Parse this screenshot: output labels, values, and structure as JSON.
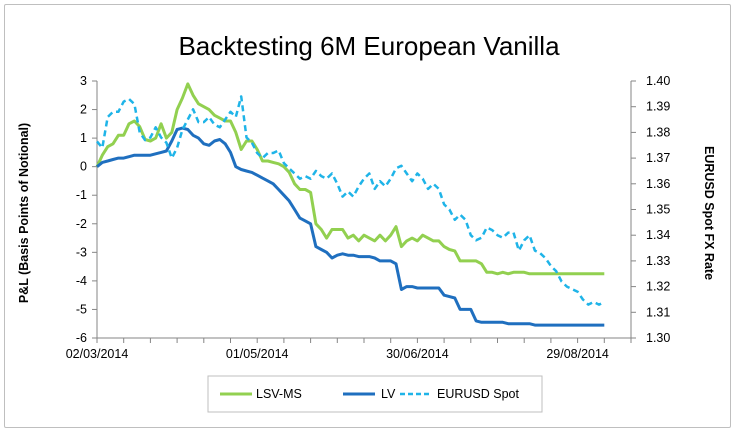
{
  "chart_data": {
    "type": "line",
    "title": "Backtesting 6M European Vanilla",
    "ylabel": "P&L (Basis Points of Notional)",
    "y2label": "EURUSD Spot FX Rate",
    "ylim": [
      -6,
      3
    ],
    "y2lim": [
      1.3,
      1.4
    ],
    "y_ticks": [
      "3",
      "2",
      "1",
      "0",
      "-1",
      "-2",
      "-3",
      "-4",
      "-5",
      "-6"
    ],
    "y2_ticks": [
      "1.40",
      "1.39",
      "1.38",
      "1.37",
      "1.36",
      "1.35",
      "1.34",
      "1.33",
      "1.32",
      "1.31",
      "1.30"
    ],
    "x_ticks": [
      "02/03/2014",
      "01/05/2014",
      "30/06/2014",
      "29/08/2014"
    ],
    "x_tick_days": [
      0,
      60,
      120,
      180
    ],
    "xlim_days": [
      0,
      200
    ],
    "x_unit": "days from 02/03/2014",
    "colors": {
      "lsv": "#92D050",
      "lv": "#1F6FBF",
      "spot": "#1FB4E8",
      "negative_tick": "#FF0000",
      "axis": "#868686"
    },
    "legend": {
      "position": "bottom",
      "entries": [
        "LSV-MS",
        "LV",
        "EURUSD Spot"
      ]
    },
    "series": [
      {
        "name": "LSV-MS",
        "axis": "left",
        "style": "solid",
        "x": [
          0,
          2,
          4,
          6,
          8,
          10,
          12,
          14,
          16,
          18,
          20,
          22,
          24,
          26,
          28,
          30,
          32,
          34,
          36,
          38,
          40,
          42,
          44,
          46,
          48,
          50,
          52,
          54,
          56,
          58,
          60,
          62,
          64,
          66,
          68,
          70,
          72,
          74,
          76,
          78,
          80,
          82,
          84,
          86,
          88,
          90,
          92,
          94,
          96,
          98,
          100,
          102,
          104,
          106,
          108,
          110,
          112,
          114,
          116,
          118,
          120,
          122,
          124,
          126,
          128,
          130,
          132,
          134,
          136,
          138,
          140,
          142,
          144,
          146,
          148,
          150,
          152,
          154,
          156,
          158,
          160,
          162,
          164,
          166,
          168,
          170,
          172,
          174,
          176,
          178,
          180,
          182,
          184,
          186,
          188,
          190
        ],
        "y": [
          0,
          0.4,
          0.7,
          0.8,
          1.1,
          1.1,
          1.5,
          1.6,
          1.4,
          0.95,
          0.9,
          1.0,
          1.5,
          1.0,
          1.2,
          2.0,
          2.4,
          2.9,
          2.5,
          2.2,
          2.1,
          2.0,
          1.8,
          1.7,
          1.6,
          1.6,
          1.2,
          0.6,
          0.9,
          0.9,
          0.6,
          0.2,
          0.2,
          0.15,
          0.1,
          0.0,
          -0.2,
          -0.6,
          -0.8,
          -0.8,
          -0.9,
          -2.0,
          -2.2,
          -2.5,
          -2.2,
          -2.2,
          -2.2,
          -2.5,
          -2.4,
          -2.6,
          -2.4,
          -2.5,
          -2.6,
          -2.4,
          -2.6,
          -2.4,
          -2.1,
          -2.8,
          -2.6,
          -2.5,
          -2.6,
          -2.4,
          -2.5,
          -2.6,
          -2.6,
          -2.8,
          -2.9,
          -2.95,
          -3.3,
          -3.3,
          -3.3,
          -3.3,
          -3.4,
          -3.7,
          -3.7,
          -3.75,
          -3.7,
          -3.75,
          -3.7,
          -3.7,
          -3.7,
          -3.75,
          -3.75,
          -3.75,
          -3.75,
          -3.75,
          -3.75,
          -3.75,
          -3.75,
          -3.75,
          -3.75,
          -3.75,
          -3.75,
          -3.75,
          -3.75,
          -3.75
        ]
      },
      {
        "name": "LV",
        "axis": "left",
        "style": "solid",
        "x": [
          0,
          2,
          4,
          6,
          8,
          10,
          12,
          14,
          16,
          18,
          20,
          22,
          24,
          26,
          28,
          30,
          32,
          34,
          36,
          38,
          40,
          42,
          44,
          46,
          48,
          50,
          52,
          54,
          56,
          58,
          60,
          62,
          64,
          66,
          68,
          70,
          72,
          74,
          76,
          78,
          80,
          82,
          84,
          86,
          88,
          90,
          92,
          94,
          96,
          98,
          100,
          102,
          104,
          106,
          108,
          110,
          112,
          114,
          116,
          118,
          120,
          122,
          124,
          126,
          128,
          130,
          132,
          134,
          136,
          138,
          140,
          142,
          144,
          146,
          148,
          150,
          152,
          154,
          156,
          158,
          160,
          162,
          164,
          166,
          168,
          170,
          172,
          174,
          176,
          178,
          180,
          182,
          184,
          186,
          188,
          190
        ],
        "y": [
          0,
          0.15,
          0.2,
          0.25,
          0.3,
          0.3,
          0.35,
          0.4,
          0.4,
          0.4,
          0.4,
          0.45,
          0.5,
          0.55,
          0.9,
          1.3,
          1.35,
          1.3,
          1.1,
          1.0,
          0.8,
          0.75,
          0.9,
          0.95,
          0.8,
          0.5,
          0.0,
          -0.1,
          -0.15,
          -0.2,
          -0.3,
          -0.4,
          -0.5,
          -0.6,
          -0.8,
          -1.0,
          -1.2,
          -1.5,
          -1.8,
          -1.9,
          -2.0,
          -2.8,
          -2.9,
          -3.0,
          -3.2,
          -3.1,
          -3.05,
          -3.1,
          -3.1,
          -3.15,
          -3.15,
          -3.15,
          -3.2,
          -3.3,
          -3.3,
          -3.3,
          -3.4,
          -4.3,
          -4.2,
          -4.2,
          -4.25,
          -4.25,
          -4.25,
          -4.25,
          -4.25,
          -4.5,
          -4.55,
          -4.6,
          -5.0,
          -5.0,
          -5.0,
          -5.4,
          -5.45,
          -5.45,
          -5.45,
          -5.45,
          -5.45,
          -5.5,
          -5.5,
          -5.5,
          -5.5,
          -5.5,
          -5.55,
          -5.55,
          -5.55,
          -5.55,
          -5.55,
          -5.55,
          -5.55,
          -5.55,
          -5.55,
          -5.55,
          -5.55,
          -5.55,
          -5.55,
          -5.55
        ]
      },
      {
        "name": "EURUSD Spot",
        "axis": "right",
        "style": "dashed",
        "x": [
          0,
          2,
          4,
          6,
          8,
          10,
          12,
          14,
          16,
          18,
          20,
          22,
          24,
          26,
          28,
          30,
          32,
          34,
          36,
          38,
          40,
          42,
          44,
          46,
          48,
          50,
          52,
          54,
          56,
          58,
          60,
          62,
          64,
          66,
          68,
          70,
          72,
          74,
          76,
          78,
          80,
          82,
          84,
          86,
          88,
          90,
          92,
          94,
          96,
          98,
          100,
          102,
          104,
          106,
          108,
          110,
          112,
          114,
          116,
          118,
          120,
          122,
          124,
          126,
          128,
          130,
          132,
          134,
          136,
          138,
          140,
          142,
          144,
          146,
          148,
          150,
          152,
          154,
          156,
          158,
          160,
          162,
          164,
          166,
          168,
          170,
          172,
          174,
          176,
          178,
          180,
          182,
          184,
          186,
          188,
          190
        ],
        "y": [
          1.3765,
          1.374,
          1.386,
          1.388,
          1.388,
          1.392,
          1.393,
          1.391,
          1.38,
          1.377,
          1.378,
          1.382,
          1.378,
          1.376,
          1.37,
          1.374,
          1.381,
          1.385,
          1.389,
          1.384,
          1.384,
          1.386,
          1.383,
          1.382,
          1.385,
          1.388,
          1.386,
          1.394,
          1.378,
          1.376,
          1.372,
          1.37,
          1.372,
          1.372,
          1.373,
          1.368,
          1.366,
          1.364,
          1.362,
          1.363,
          1.362,
          1.365,
          1.363,
          1.362,
          1.364,
          1.36,
          1.355,
          1.357,
          1.355,
          1.359,
          1.362,
          1.364,
          1.358,
          1.361,
          1.359,
          1.362,
          1.366,
          1.367,
          1.364,
          1.361,
          1.364,
          1.362,
          1.358,
          1.36,
          1.358,
          1.352,
          1.35,
          1.346,
          1.348,
          1.346,
          1.34,
          1.338,
          1.339,
          1.343,
          1.342,
          1.34,
          1.339,
          1.341,
          1.341,
          1.334,
          1.338,
          1.34,
          1.334,
          1.333,
          1.331,
          1.328,
          1.326,
          1.322,
          1.32,
          1.319,
          1.318,
          1.315,
          1.313,
          1.314,
          1.313,
          1.314
        ]
      }
    ]
  }
}
